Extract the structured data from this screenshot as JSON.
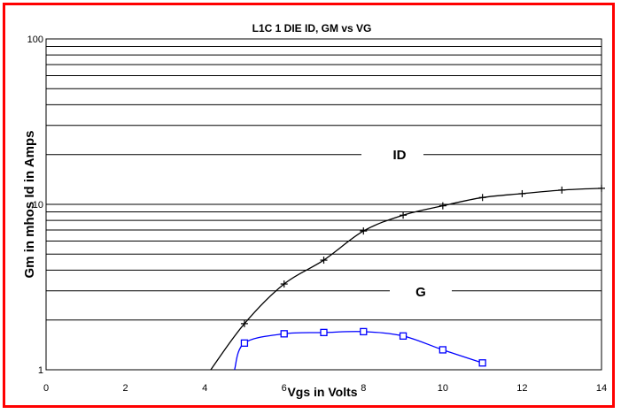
{
  "chart_data": {
    "type": "line",
    "title": "L1C   1 DIE    ID, GM vs VG",
    "xlabel": "Vgs in Volts",
    "ylabel": "Gm in  mhos      Id in Amps",
    "xlim": [
      0,
      14
    ],
    "ylim": [
      1,
      100
    ],
    "yscale": "log",
    "grid": true,
    "x_ticks": [
      "0",
      "2",
      "4",
      "6",
      "8",
      "10",
      "12",
      "14"
    ],
    "y_ticks": [
      "1",
      "10",
      "100"
    ],
    "series": [
      {
        "name": "ID",
        "color": "#000000",
        "marker": "plus",
        "x": [
          5,
          6,
          7,
          8,
          9,
          10,
          11,
          12,
          13,
          14
        ],
        "y": [
          1.9,
          3.3,
          4.6,
          6.9,
          8.6,
          9.8,
          11.0,
          11.6,
          12.2,
          12.5
        ]
      },
      {
        "name": "G",
        "color": "#0000ff",
        "marker": "square",
        "x": [
          5,
          6,
          7,
          8,
          9,
          10,
          11
        ],
        "y": [
          1.45,
          1.65,
          1.68,
          1.7,
          1.6,
          1.32,
          1.1
        ]
      }
    ],
    "curve_start": {
      "ID": {
        "x": 4.15,
        "y": 1.0
      },
      "G": {
        "x": 4.75,
        "y": 1.0
      }
    }
  },
  "colors": {
    "frame": "#ff0000",
    "id_series": "#000000",
    "g_series": "#0000ff"
  }
}
